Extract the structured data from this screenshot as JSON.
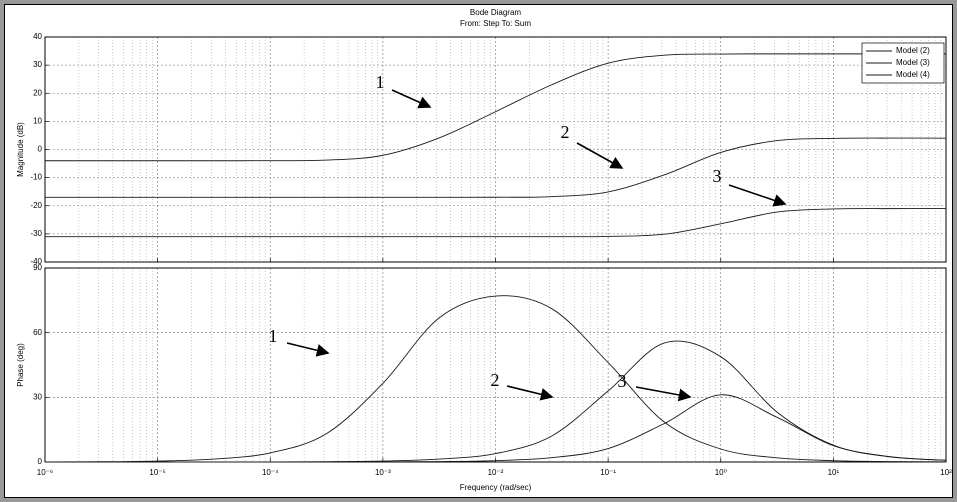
{
  "chart_data": [
    {
      "type": "line",
      "title": "Bode Diagram",
      "subtitle": "From: Step  To: Sum",
      "ylabel": "Magnitude (dB)",
      "x": [
        1e-06,
        3.16e-06,
        1e-05,
        3.16e-05,
        0.0001,
        0.000316,
        0.001,
        0.00316,
        0.01,
        0.0316,
        0.1,
        0.316,
        1,
        3.16,
        10,
        31.6,
        100
      ],
      "series": [
        {
          "name": "Model (2)",
          "color": "#1a1a1a",
          "values": [
            -4,
            -4,
            -4,
            -4,
            -3.98,
            -3.77,
            -2.07,
            4.12,
            13.43,
            23.03,
            30.69,
            33.53,
            33.94,
            34,
            34,
            34,
            34
          ]
        },
        {
          "name": "Model (3)",
          "color": "#1a1a1a",
          "values": [
            -17,
            -17,
            -17,
            -17,
            -17,
            -17,
            -17,
            -17,
            -16.98,
            -16.76,
            -15.08,
            -9.01,
            -1.04,
            3.17,
            3.95,
            4.05,
            4.04
          ]
        },
        {
          "name": "Model (4)",
          "color": "#1a1a1a",
          "values": [
            -31,
            -31,
            -31,
            -31,
            -31,
            -31,
            -31,
            -31,
            -31,
            -30.99,
            -30.9,
            -30.12,
            -26.43,
            -22.25,
            -21.14,
            -21.02,
            -21
          ]
        }
      ],
      "log_x": true,
      "xlim": [
        1e-06,
        100
      ],
      "xticks": [
        1e-06,
        1e-05,
        0.0001,
        0.001,
        0.01,
        0.1,
        1,
        10,
        100
      ],
      "ylim": [
        -40,
        40
      ],
      "yticks": [
        -40,
        -30,
        -20,
        -10,
        0,
        10,
        20,
        30,
        40
      ],
      "grid": true,
      "minor_grid": true,
      "legend": "upper right",
      "annotations": [
        "1",
        "2",
        "3"
      ]
    },
    {
      "type": "line",
      "ylabel": "Phase (deg)",
      "xlabel": "Frequency  (rad/sec)",
      "x": [
        1e-06,
        3.16e-06,
        1e-05,
        3.16e-05,
        0.0001,
        0.000316,
        0.001,
        0.00316,
        0.01,
        0.0316,
        0.1,
        0.316,
        1,
        3.16,
        10,
        31.6,
        100
      ],
      "series": [
        {
          "color": "#1a1a1a",
          "values": [
            0.04,
            0.13,
            0.42,
            1.34,
            4.23,
            13.17,
            36.5,
            66.86,
            76.97,
            71.12,
            46.15,
            18.49,
            6.03,
            1.92,
            0.61,
            0.19,
            0.06
          ]
        },
        {
          "color": "#1a1a1a",
          "values": [
            0,
            0,
            0,
            0.01,
            0.04,
            0.14,
            0.43,
            1.35,
            3.89,
            12.08,
            32.94,
            55.23,
            48.86,
            23.14,
            7.82,
            2.5,
            0.79
          ]
        },
        {
          "color": "#1a1a1a",
          "values": [
            0,
            0,
            0,
            0,
            0.01,
            0.03,
            0.09,
            0.2,
            0.63,
            2,
            6.23,
            17.87,
            31.18,
            20.72,
            7.54,
            2.43,
            0.76
          ]
        }
      ],
      "log_x": true,
      "xlim": [
        1e-06,
        100
      ],
      "xticks": [
        {
          "value": 1e-06,
          "label": "10⁻⁶"
        },
        {
          "value": 1e-05,
          "label": "10⁻⁵"
        },
        {
          "value": 0.0001,
          "label": "10⁻⁴"
        },
        {
          "value": 0.001,
          "label": "10⁻³"
        },
        {
          "value": 0.01,
          "label": "10⁻²"
        },
        {
          "value": 0.1,
          "label": "10⁻¹"
        },
        {
          "value": 1,
          "label": "10⁰"
        },
        {
          "value": 10,
          "label": "10¹"
        },
        {
          "value": 100,
          "label": "10²"
        }
      ],
      "ylim": [
        0,
        90
      ],
      "yticks": [
        0,
        30,
        60,
        90
      ],
      "grid": true,
      "minor_grid": true,
      "annotations": [
        "1",
        "2",
        "3"
      ]
    }
  ]
}
